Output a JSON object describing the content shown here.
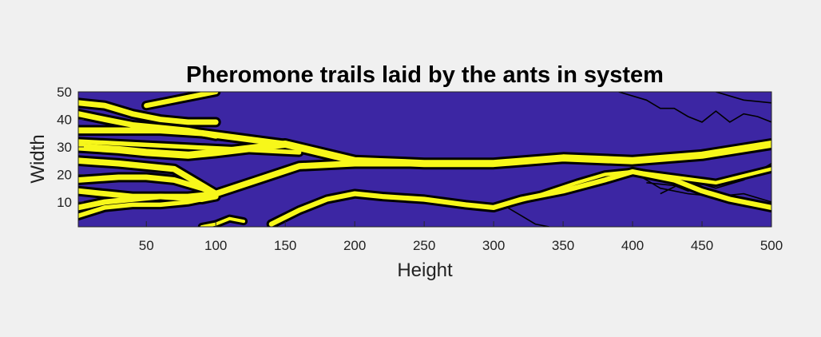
{
  "chart_data": {
    "type": "heatmap",
    "title": "Pheromone trails laid by the ants in system",
    "xlabel": "Height",
    "ylabel": "Width",
    "xlim": [
      1,
      500
    ],
    "ylim": [
      1,
      50
    ],
    "xticks": [
      50,
      100,
      150,
      200,
      250,
      300,
      350,
      400,
      450,
      500
    ],
    "yticks": [
      10,
      20,
      30,
      40,
      50
    ],
    "grid": false,
    "legend": "none",
    "colors": {
      "background": "#3c26a3",
      "trail": "#f7f71a",
      "outline": "#000000",
      "figure": "#f0f0f0"
    },
    "trails": [
      {
        "width": 2.6,
        "points": [
          [
            1,
            30
          ],
          [
            30,
            29
          ],
          [
            50,
            28
          ],
          [
            80,
            27
          ],
          [
            100,
            28
          ],
          [
            150,
            31
          ],
          [
            200,
            25
          ],
          [
            250,
            24
          ],
          [
            300,
            24
          ],
          [
            350,
            26
          ],
          [
            400,
            25
          ],
          [
            450,
            27
          ],
          [
            500,
            31
          ]
        ]
      },
      {
        "width": 2.2,
        "points": [
          [
            1,
            25
          ],
          [
            30,
            24
          ],
          [
            50,
            23
          ],
          [
            70,
            22
          ],
          [
            100,
            13
          ],
          [
            130,
            18
          ],
          [
            160,
            23
          ],
          [
            200,
            24
          ],
          [
            240,
            24
          ]
        ]
      },
      {
        "width": 2.2,
        "points": [
          [
            1,
            36
          ],
          [
            30,
            36
          ],
          [
            60,
            36
          ],
          [
            90,
            35
          ],
          [
            120,
            33
          ],
          [
            150,
            31
          ]
        ]
      },
      {
        "width": 2.0,
        "points": [
          [
            1,
            46
          ],
          [
            20,
            45
          ],
          [
            40,
            42
          ],
          [
            60,
            40
          ],
          [
            80,
            39
          ],
          [
            100,
            39
          ]
        ]
      },
      {
        "width": 2.0,
        "points": [
          [
            1,
            42
          ],
          [
            20,
            40
          ],
          [
            40,
            38
          ],
          [
            60,
            37
          ],
          [
            80,
            36
          ],
          [
            100,
            34
          ]
        ]
      },
      {
        "width": 2.0,
        "points": [
          [
            1,
            18
          ],
          [
            30,
            19
          ],
          [
            50,
            19
          ],
          [
            70,
            18
          ],
          [
            90,
            15
          ],
          [
            100,
            13
          ]
        ]
      },
      {
        "width": 2.0,
        "points": [
          [
            1,
            8
          ],
          [
            20,
            10
          ],
          [
            40,
            11
          ],
          [
            60,
            12
          ],
          [
            80,
            12
          ],
          [
            100,
            13
          ]
        ]
      },
      {
        "width": 1.6,
        "points": [
          [
            1,
            5
          ],
          [
            20,
            8
          ],
          [
            40,
            9
          ],
          [
            60,
            9
          ],
          [
            80,
            10
          ],
          [
            100,
            12
          ]
        ]
      },
      {
        "width": 2.0,
        "points": [
          [
            1,
            14
          ],
          [
            20,
            13
          ],
          [
            40,
            12
          ],
          [
            60,
            12
          ],
          [
            90,
            11
          ],
          [
            100,
            12
          ]
        ]
      },
      {
        "width": 1.6,
        "points": [
          [
            1,
            32
          ],
          [
            40,
            31
          ],
          [
            80,
            30
          ],
          [
            120,
            29
          ],
          [
            160,
            28
          ]
        ]
      },
      {
        "width": 1.8,
        "points": [
          [
            50,
            45
          ],
          [
            70,
            47
          ],
          [
            90,
            49
          ],
          [
            100,
            50
          ]
        ]
      },
      {
        "width": 1.8,
        "points": [
          [
            140,
            2
          ],
          [
            160,
            7
          ],
          [
            180,
            11
          ],
          [
            200,
            13
          ],
          [
            220,
            12
          ],
          [
            250,
            11
          ],
          [
            280,
            9
          ],
          [
            300,
            8
          ],
          [
            320,
            11
          ],
          [
            350,
            14
          ],
          [
            380,
            18
          ],
          [
            400,
            21
          ],
          [
            430,
            18
          ],
          [
            450,
            14
          ],
          [
            470,
            11
          ],
          [
            490,
            9
          ],
          [
            500,
            8
          ]
        ]
      },
      {
        "width": 1.3,
        "points": [
          [
            300,
            8
          ],
          [
            330,
            12
          ],
          [
            360,
            17
          ],
          [
            380,
            20
          ],
          [
            400,
            21
          ],
          [
            430,
            19
          ],
          [
            460,
            17
          ],
          [
            500,
            22
          ]
        ]
      },
      {
        "width": 1.2,
        "points": [
          [
            90,
            1
          ],
          [
            100,
            2
          ],
          [
            110,
            4
          ],
          [
            120,
            3
          ]
        ]
      }
    ],
    "thin_paths": [
      {
        "points": [
          [
            390,
            50
          ],
          [
            410,
            47
          ],
          [
            420,
            44
          ],
          [
            430,
            44
          ],
          [
            440,
            41
          ],
          [
            450,
            39
          ],
          [
            460,
            43
          ],
          [
            470,
            39
          ],
          [
            480,
            42
          ],
          [
            490,
            41
          ],
          [
            500,
            39
          ]
        ]
      },
      {
        "points": [
          [
            310,
            8
          ],
          [
            320,
            5
          ],
          [
            330,
            2
          ],
          [
            340,
            1
          ]
        ]
      },
      {
        "points": [
          [
            400,
            21
          ],
          [
            420,
            15
          ],
          [
            440,
            13
          ],
          [
            460,
            12
          ],
          [
            480,
            13
          ],
          [
            500,
            10
          ]
        ]
      },
      {
        "points": [
          [
            420,
            13
          ],
          [
            440,
            18
          ],
          [
            460,
            15
          ],
          [
            480,
            18
          ],
          [
            500,
            24
          ]
        ]
      },
      {
        "points": [
          [
            460,
            50
          ],
          [
            480,
            47
          ],
          [
            500,
            46
          ]
        ]
      },
      {
        "points": [
          [
            410,
            17
          ],
          [
            430,
            16
          ],
          [
            440,
            14
          ],
          [
            450,
            15
          ]
        ]
      }
    ]
  }
}
